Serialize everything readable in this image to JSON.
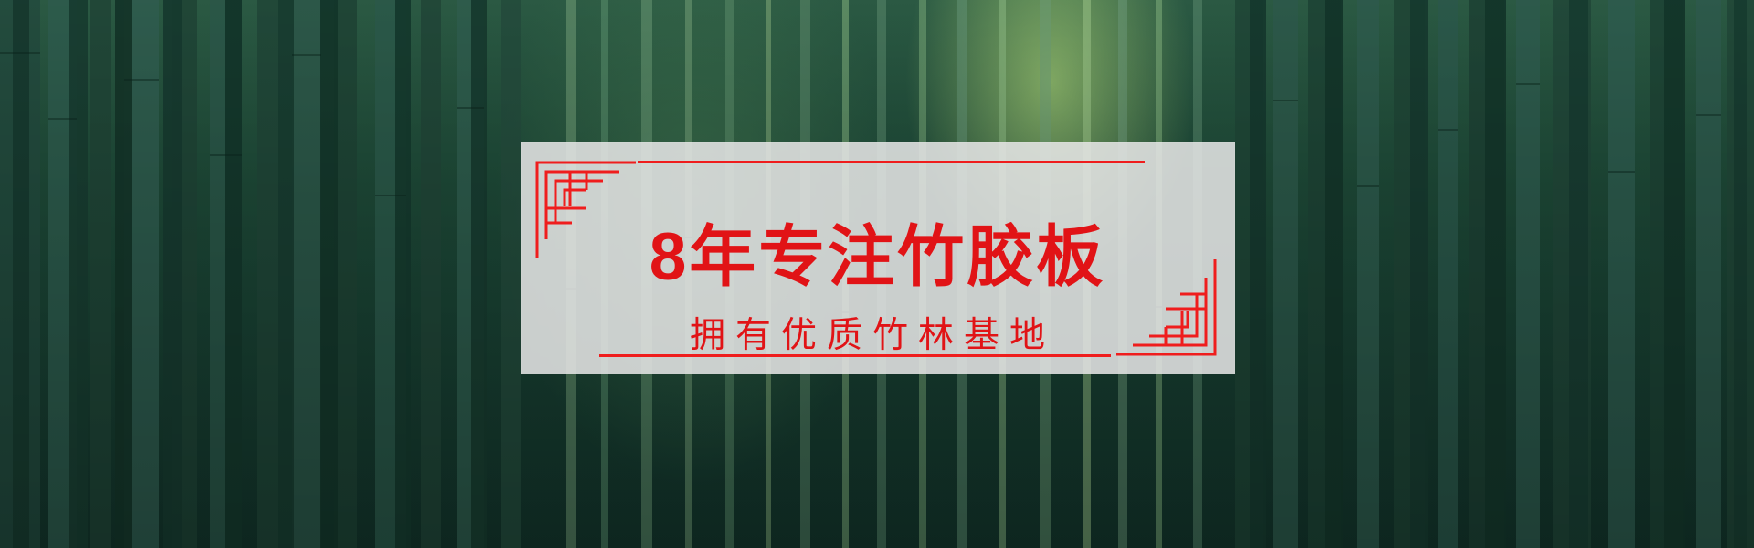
{
  "banner": {
    "headline": "8年专注竹胶板",
    "subheadline": "拥有优质竹林基地"
  },
  "colors": {
    "accent": "#e11316",
    "panel_background": "#e6e6e6",
    "background_dark": "#12332a",
    "background_light": "#add678"
  }
}
